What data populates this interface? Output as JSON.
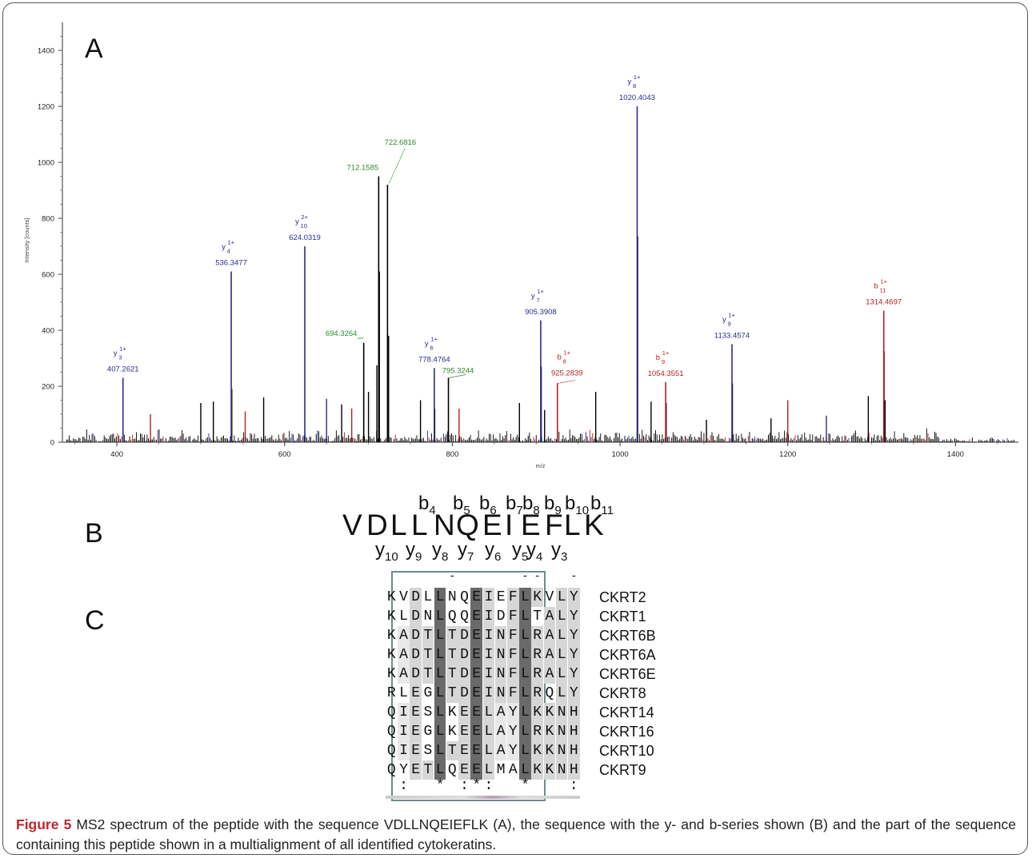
{
  "figure": {
    "caption_label": "Figure 5",
    "caption_text": " MS2 spectrum of the peptide with the sequence VDLLNQEIEFLK (A), the sequence with the y- and b-series shown (B) and the part of the sequence containing this peptide shown in a multialignment of all identified cytokeratins."
  },
  "panels": {
    "a": "A",
    "b": "B",
    "c": "C"
  },
  "chart_data": {
    "type": "bar",
    "xlabel": "m/z",
    "ylabel": "Intensity [counts]",
    "xlim": [
      335,
      1475
    ],
    "ylim": [
      0,
      1500
    ],
    "x_ticks": [
      400,
      600,
      800,
      1000,
      1200,
      1400
    ],
    "y_ticks": [
      0,
      200,
      400,
      600,
      800,
      1000,
      1200,
      1400
    ],
    "colors": {
      "y_ion": "#2b2b8f",
      "b_ion": "#b22222",
      "other": "#2e8b2e",
      "noise": "#000000"
    },
    "annotated_peaks": [
      {
        "ion": "y",
        "index": "3",
        "charge": "1+",
        "mz": 407.2621,
        "label": "407.2621",
        "intensity": 230
      },
      {
        "ion": "y",
        "index": "4",
        "charge": "1+",
        "mz": 536.3477,
        "label": "536.3477",
        "intensity": 610
      },
      {
        "ion": "y",
        "index": "10",
        "charge": "2+",
        "mz": 624.0319,
        "label": "624.0319",
        "intensity": 700
      },
      {
        "ion": "",
        "index": "",
        "charge": "",
        "mz": 694.3264,
        "label": "694.3264",
        "intensity": 355
      },
      {
        "ion": "",
        "index": "",
        "charge": "",
        "mz": 712.1585,
        "label": "712.1585",
        "intensity": 950
      },
      {
        "ion": "",
        "index": "",
        "charge": "",
        "mz": 722.6816,
        "label": "722.6816",
        "intensity": 920
      },
      {
        "ion": "y",
        "index": "6",
        "charge": "1+",
        "mz": 778.4764,
        "label": "778.4764",
        "intensity": 265
      },
      {
        "ion": "",
        "index": "",
        "charge": "",
        "mz": 795.3244,
        "label": "795.3244",
        "intensity": 230
      },
      {
        "ion": "y",
        "index": "7",
        "charge": "1+",
        "mz": 905.3908,
        "label": "905.3908",
        "intensity": 435
      },
      {
        "ion": "b",
        "index": "8",
        "charge": "1+",
        "mz": 925.2839,
        "label": "925.2839",
        "intensity": 210
      },
      {
        "ion": "y",
        "index": "8",
        "charge": "1+",
        "mz": 1020.4043,
        "label": "1020.4043",
        "intensity": 1200
      },
      {
        "ion": "b",
        "index": "9",
        "charge": "1+",
        "mz": 1054.3551,
        "label": "1054.3551",
        "intensity": 215
      },
      {
        "ion": "y",
        "index": "9",
        "charge": "1+",
        "mz": 1133.4574,
        "label": "1133.4574",
        "intensity": 350
      },
      {
        "ion": "b",
        "index": "11",
        "charge": "1+",
        "mz": 1314.4697,
        "label": "1314.4697",
        "intensity": 470
      }
    ],
    "other_peaks": [
      {
        "mz": 440,
        "intensity": 100,
        "color": "b"
      },
      {
        "mz": 500,
        "intensity": 140,
        "color": "k"
      },
      {
        "mz": 515,
        "intensity": 145,
        "color": "k"
      },
      {
        "mz": 537,
        "intensity": 190,
        "color": "k"
      },
      {
        "mz": 553,
        "intensity": 110,
        "color": "b"
      },
      {
        "mz": 575,
        "intensity": 160,
        "color": "k"
      },
      {
        "mz": 650,
        "intensity": 155,
        "color": "y"
      },
      {
        "mz": 668,
        "intensity": 135,
        "color": "k"
      },
      {
        "mz": 680,
        "intensity": 120,
        "color": "b"
      },
      {
        "mz": 700,
        "intensity": 180,
        "color": "k"
      },
      {
        "mz": 710,
        "intensity": 275,
        "color": "k"
      },
      {
        "mz": 713,
        "intensity": 610,
        "color": "k"
      },
      {
        "mz": 724,
        "intensity": 380,
        "color": "k"
      },
      {
        "mz": 762,
        "intensity": 150,
        "color": "k"
      },
      {
        "mz": 779,
        "intensity": 120,
        "color": "k"
      },
      {
        "mz": 808,
        "intensity": 120,
        "color": "b"
      },
      {
        "mz": 880,
        "intensity": 140,
        "color": "k"
      },
      {
        "mz": 906,
        "intensity": 270,
        "color": "k"
      },
      {
        "mz": 910,
        "intensity": 115,
        "color": "k"
      },
      {
        "mz": 971,
        "intensity": 180,
        "color": "k"
      },
      {
        "mz": 1021,
        "intensity": 735,
        "color": "k"
      },
      {
        "mz": 1037,
        "intensity": 145,
        "color": "k"
      },
      {
        "mz": 1055,
        "intensity": 140,
        "color": "k"
      },
      {
        "mz": 1103,
        "intensity": 80,
        "color": "k"
      },
      {
        "mz": 1134,
        "intensity": 210,
        "color": "k"
      },
      {
        "mz": 1180,
        "intensity": 85,
        "color": "k"
      },
      {
        "mz": 1200,
        "intensity": 150,
        "color": "b"
      },
      {
        "mz": 1246,
        "intensity": 95,
        "color": "y"
      },
      {
        "mz": 1296,
        "intensity": 165,
        "color": "k"
      },
      {
        "mz": 1315,
        "intensity": 325,
        "color": "b"
      },
      {
        "mz": 1316,
        "intensity": 150,
        "color": "k"
      }
    ]
  },
  "peptide": {
    "sequence": [
      "V",
      "D",
      "L",
      "L",
      "N",
      "Q",
      "E",
      "I",
      "E",
      "F",
      "L",
      "K"
    ],
    "b_labels": [
      {
        "base": "b",
        "sub": "4"
      },
      {
        "base": "b",
        "sub": "5"
      },
      {
        "base": "b",
        "sub": "6"
      },
      {
        "base": "b",
        "sub": "7"
      },
      {
        "base": "b",
        "sub": "8"
      },
      {
        "base": "b",
        "sub": "9"
      },
      {
        "base": "b",
        "sub": "10"
      },
      {
        "base": "b",
        "sub": "11"
      }
    ],
    "y_labels": [
      {
        "base": "y",
        "sub": "10"
      },
      {
        "base": "y",
        "sub": "9"
      },
      {
        "base": "y",
        "sub": "8"
      },
      {
        "base": "y",
        "sub": "7"
      },
      {
        "base": "y",
        "sub": "6"
      },
      {
        "base": "y",
        "sub": "5"
      },
      {
        "base": "y",
        "sub": "4"
      },
      {
        "base": "y",
        "sub": "3"
      }
    ]
  },
  "alignment": {
    "top_marks": [
      "",
      "",
      "",
      "",
      "",
      "-",
      "",
      "",
      "",
      "",
      "",
      "-",
      "-",
      "",
      "",
      "-",
      ""
    ],
    "rows": [
      {
        "name": "CKRT2",
        "seq": "KVDLLNQEIEFLKVLY"
      },
      {
        "name": "CKRT1",
        "seq": "KLDNLQQEIDFLTALY"
      },
      {
        "name": "CKRT6B",
        "seq": "KADTLTDEINFLRALY"
      },
      {
        "name": "CKRT6A",
        "seq": "KADTLTDEINFLRALY"
      },
      {
        "name": "CKRT6E",
        "seq": "KADTLTDEINFLRALY"
      },
      {
        "name": "CKRT8",
        "seq": "RLEGLTDEINFLRQLY"
      },
      {
        "name": "CKRT14",
        "seq": "QIESLKEELAYLKKNH"
      },
      {
        "name": "CKRT16",
        "seq": "QIEGLKEELAYLRKNH"
      },
      {
        "name": "CKRT10",
        "seq": "QIESLTEELAYLKKNH"
      },
      {
        "name": "CKRT9",
        "seq": "QYETLQEELMALKKNH"
      }
    ],
    "consensus": [
      "",
      ":",
      "",
      "",
      "*",
      "",
      ":",
      "*",
      ":",
      "",
      "",
      "*",
      "",
      "",
      "",
      ":"
    ]
  }
}
